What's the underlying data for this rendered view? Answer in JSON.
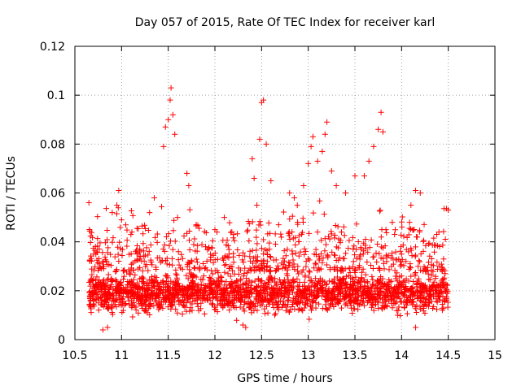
{
  "chart_data": {
    "type": "scatter",
    "title": "Day 057 of 2015, Rate Of TEC Index for receiver karl",
    "xlabel": "GPS time / hours",
    "ylabel": "ROTI / TECUs",
    "xlim": [
      10.5,
      15
    ],
    "ylim": [
      0,
      0.12
    ],
    "xticks": [
      10.5,
      11,
      11.5,
      12,
      12.5,
      13,
      13.5,
      14,
      14.5,
      15
    ],
    "xtick_labels": [
      "10.5",
      "11",
      "11.5",
      "12",
      "12.5",
      "13",
      "13.5",
      "14",
      "14.5",
      "15"
    ],
    "yticks": [
      0,
      0.02,
      0.04,
      0.06,
      0.08,
      0.1,
      0.12
    ],
    "ytick_labels": [
      "0",
      "0.02",
      "0.04",
      "0.06",
      "0.08",
      "0.1",
      "0.12"
    ],
    "grid": true,
    "marker": "+",
    "series": [
      {
        "name": "karl",
        "color": "#ff0000",
        "x_range": [
          10.65,
          14.5
        ],
        "typical_range": [
          0.008,
          0.03
        ],
        "points": [
          [
            10.65,
            0.056
          ],
          [
            10.7,
            0.035
          ],
          [
            10.72,
            0.038
          ],
          [
            10.8,
            0.004
          ],
          [
            10.85,
            0.005
          ],
          [
            10.9,
            0.052
          ],
          [
            10.95,
            0.055
          ],
          [
            10.97,
            0.061
          ],
          [
            11.0,
            0.049
          ],
          [
            11.1,
            0.043
          ],
          [
            11.15,
            0.036
          ],
          [
            11.2,
            0.034
          ],
          [
            11.3,
            0.052
          ],
          [
            11.35,
            0.058
          ],
          [
            11.45,
            0.079
          ],
          [
            11.47,
            0.087
          ],
          [
            11.5,
            0.09
          ],
          [
            11.52,
            0.098
          ],
          [
            11.53,
            0.103
          ],
          [
            11.55,
            0.092
          ],
          [
            11.57,
            0.084
          ],
          [
            11.6,
            0.05
          ],
          [
            11.7,
            0.068
          ],
          [
            11.72,
            0.063
          ],
          [
            11.8,
            0.047
          ],
          [
            11.9,
            0.038
          ],
          [
            12.0,
            0.045
          ],
          [
            12.1,
            0.05
          ],
          [
            12.2,
            0.043
          ],
          [
            12.3,
            0.006
          ],
          [
            12.33,
            0.005
          ],
          [
            12.4,
            0.074
          ],
          [
            12.42,
            0.066
          ],
          [
            12.45,
            0.055
          ],
          [
            12.48,
            0.082
          ],
          [
            12.5,
            0.097
          ],
          [
            12.52,
            0.098
          ],
          [
            12.55,
            0.08
          ],
          [
            12.6,
            0.065
          ],
          [
            12.8,
            0.06
          ],
          [
            12.85,
            0.058
          ],
          [
            12.95,
            0.063
          ],
          [
            13.0,
            0.072
          ],
          [
            13.03,
            0.079
          ],
          [
            13.05,
            0.083
          ],
          [
            13.1,
            0.073
          ],
          [
            13.15,
            0.077
          ],
          [
            13.18,
            0.084
          ],
          [
            13.2,
            0.089
          ],
          [
            13.25,
            0.069
          ],
          [
            13.3,
            0.063
          ],
          [
            13.4,
            0.06
          ],
          [
            13.5,
            0.067
          ],
          [
            13.6,
            0.067
          ],
          [
            13.65,
            0.073
          ],
          [
            13.7,
            0.079
          ],
          [
            13.75,
            0.086
          ],
          [
            13.78,
            0.093
          ],
          [
            13.8,
            0.085
          ],
          [
            13.9,
            0.048
          ],
          [
            14.0,
            0.035
          ],
          [
            14.1,
            0.055
          ],
          [
            14.15,
            0.061
          ],
          [
            14.2,
            0.06
          ],
          [
            14.15,
            0.005
          ],
          [
            14.3,
            0.02
          ],
          [
            14.4,
            0.044
          ],
          [
            14.45,
            0.033
          ],
          [
            14.5,
            0.053
          ]
        ]
      }
    ]
  }
}
